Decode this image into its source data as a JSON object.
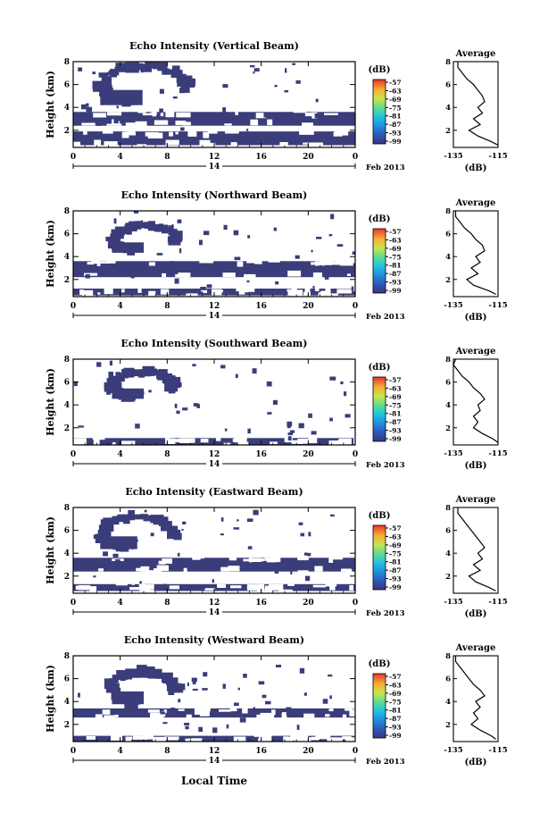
{
  "figure": {
    "xlabel": "Local Time",
    "date_label": "Feb 2013",
    "day_label": "14",
    "ylabel": "Height (km)",
    "colorbar_unit": "(dB)",
    "avg_title": "Average",
    "avg_xlabel": "(dB)"
  },
  "chart_data": [
    {
      "type": "heatmap",
      "title": "Echo Intensity (Vertical Beam)",
      "xlabel": "",
      "ylabel": "Height (km)",
      "x_ticks": [
        "0",
        "4",
        "8",
        "12",
        "16",
        "20",
        "0"
      ],
      "y_ticks": [
        "2",
        "4",
        "6",
        "8"
      ],
      "xlim": [
        0,
        24
      ],
      "ylim": [
        0.5,
        8
      ],
      "colorbar": {
        "label": "(dB)",
        "ticks": [
          "-57",
          "-63",
          "-69",
          "-75",
          "-81",
          "-87",
          "-93",
          "-99"
        ]
      },
      "regions": [
        {
          "name": "dense echo layer",
          "t": [
            0,
            24
          ],
          "h": [
            2.4,
            3.6
          ],
          "level_db": -99
        },
        {
          "name": "surface layer",
          "t": [
            0,
            24
          ],
          "h": [
            0.7,
            1.9
          ],
          "level_db": -99
        },
        {
          "name": "elevated ring echo",
          "t": [
            2,
            10
          ],
          "h": [
            4.0,
            7.8
          ],
          "level_db": -99
        }
      ],
      "average": {
        "title": "Average",
        "xlim": [
          -135,
          -115
        ],
        "x_ticks": [
          "-135",
          "-115"
        ],
        "y_ticks": [
          "2",
          "4",
          "6",
          "8"
        ],
        "height_km": [
          0.7,
          1.0,
          1.5,
          2.0,
          2.5,
          3.0,
          3.5,
          4.0,
          4.5,
          5.0,
          5.5,
          6.0,
          6.5,
          7.0,
          7.5,
          8.0
        ],
        "echo_db": [
          -115,
          -118,
          -124,
          -128,
          -123,
          -126,
          -122,
          -124,
          -121,
          -122,
          -124,
          -126,
          -129,
          -131,
          -133,
          -133
        ]
      }
    },
    {
      "type": "heatmap",
      "title": "Echo Intensity (Northward Beam)",
      "xlabel": "",
      "ylabel": "Height (km)",
      "x_ticks": [
        "0",
        "4",
        "8",
        "12",
        "16",
        "20",
        "0"
      ],
      "y_ticks": [
        "2",
        "4",
        "6",
        "8"
      ],
      "xlim": [
        0,
        24
      ],
      "ylim": [
        0.5,
        8
      ],
      "colorbar": {
        "label": "(dB)",
        "ticks": [
          "-57",
          "-63",
          "-69",
          "-75",
          "-81",
          "-87",
          "-93",
          "-99"
        ]
      },
      "regions": [
        {
          "name": "dense echo layer",
          "t": [
            0,
            24
          ],
          "h": [
            2.2,
            3.6
          ],
          "level_db": -99
        },
        {
          "name": "surface layer",
          "t": [
            0,
            24
          ],
          "h": [
            0.6,
            1.2
          ],
          "level_db": -99
        },
        {
          "name": "elevated ring echo",
          "t": [
            3,
            9
          ],
          "h": [
            4.2,
            6.8
          ],
          "level_db": -99
        }
      ],
      "average": {
        "title": "Average",
        "xlim": [
          -135,
          -115
        ],
        "x_ticks": [
          "-135",
          "-115"
        ],
        "y_ticks": [
          "2",
          "4",
          "6",
          "8"
        ],
        "height_km": [
          0.7,
          1.0,
          1.5,
          2.0,
          2.5,
          3.0,
          3.5,
          4.0,
          4.5,
          5.0,
          5.5,
          6.0,
          6.5,
          7.0,
          7.5,
          8.0
        ],
        "echo_db": [
          -116,
          -119,
          -126,
          -129,
          -124,
          -127,
          -123,
          -125,
          -121,
          -122,
          -125,
          -127,
          -130,
          -132,
          -134,
          -134
        ]
      }
    },
    {
      "type": "heatmap",
      "title": "Echo Intensity (Southward Beam)",
      "xlabel": "",
      "ylabel": "Height (km)",
      "x_ticks": [
        "0",
        "4",
        "8",
        "12",
        "16",
        "20",
        "0"
      ],
      "y_ticks": [
        "2",
        "4",
        "6",
        "8"
      ],
      "xlim": [
        0,
        24
      ],
      "ylim": [
        0.5,
        8
      ],
      "colorbar": {
        "label": "(dB)",
        "ticks": [
          "-57",
          "-63",
          "-69",
          "-75",
          "-81",
          "-87",
          "-93",
          "-99"
        ]
      },
      "regions": [
        {
          "name": "surface layer",
          "t": [
            0,
            24
          ],
          "h": [
            0.5,
            1.1
          ],
          "level_db": -99
        },
        {
          "name": "elevated ring echo",
          "t": [
            3,
            9
          ],
          "h": [
            4.4,
            7.0
          ],
          "level_db": -99
        }
      ],
      "average": {
        "title": "Average",
        "xlim": [
          -135,
          -115
        ],
        "x_ticks": [
          "-135",
          "-115"
        ],
        "y_ticks": [
          "2",
          "4",
          "6",
          "8"
        ],
        "height_km": [
          0.7,
          1.0,
          1.5,
          2.0,
          2.5,
          3.0,
          3.5,
          4.0,
          4.5,
          5.0,
          5.5,
          6.0,
          6.5,
          7.0,
          7.5,
          8.0
        ],
        "echo_db": [
          -115,
          -117,
          -122,
          -126,
          -124,
          -126,
          -123,
          -124,
          -121,
          -123,
          -126,
          -128,
          -131,
          -133,
          -135,
          -134
        ]
      }
    },
    {
      "type": "heatmap",
      "title": "Echo Intensity (Eastward Beam)",
      "xlabel": "",
      "ylabel": "Height (km)",
      "x_ticks": [
        "0",
        "4",
        "8",
        "12",
        "16",
        "20",
        "0"
      ],
      "y_ticks": [
        "2",
        "4",
        "6",
        "8"
      ],
      "xlim": [
        0,
        24
      ],
      "ylim": [
        0.5,
        8
      ],
      "colorbar": {
        "label": "(dB)",
        "ticks": [
          "-57",
          "-63",
          "-69",
          "-75",
          "-81",
          "-87",
          "-93",
          "-99"
        ]
      },
      "regions": [
        {
          "name": "dense echo layer",
          "t": [
            0,
            24
          ],
          "h": [
            2.4,
            3.6
          ],
          "level_db": -99
        },
        {
          "name": "surface layer",
          "t": [
            0,
            24
          ],
          "h": [
            0.7,
            1.3
          ],
          "level_db": -99
        },
        {
          "name": "elevated ring echo",
          "t": [
            2,
            9
          ],
          "h": [
            4.2,
            7.4
          ],
          "level_db": -99
        }
      ],
      "average": {
        "title": "Average",
        "xlim": [
          -135,
          -115
        ],
        "x_ticks": [
          "-135",
          "-115"
        ],
        "y_ticks": [
          "2",
          "4",
          "6",
          "8"
        ],
        "height_km": [
          0.7,
          1.0,
          1.5,
          2.0,
          2.5,
          3.0,
          3.5,
          4.0,
          4.5,
          5.0,
          5.5,
          6.0,
          6.5,
          7.0,
          7.5,
          8.0
        ],
        "echo_db": [
          -116,
          -119,
          -125,
          -128,
          -123,
          -126,
          -122,
          -124,
          -121,
          -123,
          -125,
          -127,
          -129,
          -131,
          -133,
          -133
        ]
      }
    },
    {
      "type": "heatmap",
      "title": "Echo Intensity (Westward Beam)",
      "xlabel": "Local Time",
      "ylabel": "Height (km)",
      "x_ticks": [
        "0",
        "4",
        "8",
        "12",
        "16",
        "20",
        "0"
      ],
      "y_ticks": [
        "2",
        "4",
        "6",
        "8"
      ],
      "xlim": [
        0,
        24
      ],
      "ylim": [
        0.5,
        8
      ],
      "colorbar": {
        "label": "(dB)",
        "ticks": [
          "-57",
          "-63",
          "-69",
          "-75",
          "-81",
          "-87",
          "-93",
          "-99"
        ]
      },
      "regions": [
        {
          "name": "dense echo layer",
          "t": [
            0,
            24
          ],
          "h": [
            2.6,
            3.4
          ],
          "level_db": -99
        },
        {
          "name": "surface layer",
          "t": [
            0,
            24
          ],
          "h": [
            0.5,
            1.0
          ],
          "level_db": -99
        },
        {
          "name": "elevated ring echo",
          "t": [
            3,
            9
          ],
          "h": [
            3.6,
            6.8
          ],
          "level_db": -99
        }
      ],
      "average": {
        "title": "Average",
        "xlim": [
          -135,
          -115
        ],
        "x_ticks": [
          "-135",
          "-115"
        ],
        "y_ticks": [
          "2",
          "4",
          "6",
          "8"
        ],
        "height_km": [
          0.7,
          1.0,
          1.5,
          2.0,
          2.5,
          3.0,
          3.5,
          4.0,
          4.5,
          5.0,
          5.5,
          6.0,
          6.5,
          7.0,
          7.5,
          8.0
        ],
        "echo_db": [
          -116,
          -118,
          -123,
          -127,
          -124,
          -126,
          -123,
          -125,
          -121,
          -123,
          -126,
          -128,
          -130,
          -132,
          -134,
          -134
        ]
      }
    }
  ],
  "colors": {
    "echo": "#3a3d7a",
    "colorbar": [
      "#3b3f8f",
      "#2f63c8",
      "#1ea7e8",
      "#36d1c4",
      "#7be36a",
      "#e6e33a",
      "#f59a2c",
      "#e8382a"
    ]
  }
}
